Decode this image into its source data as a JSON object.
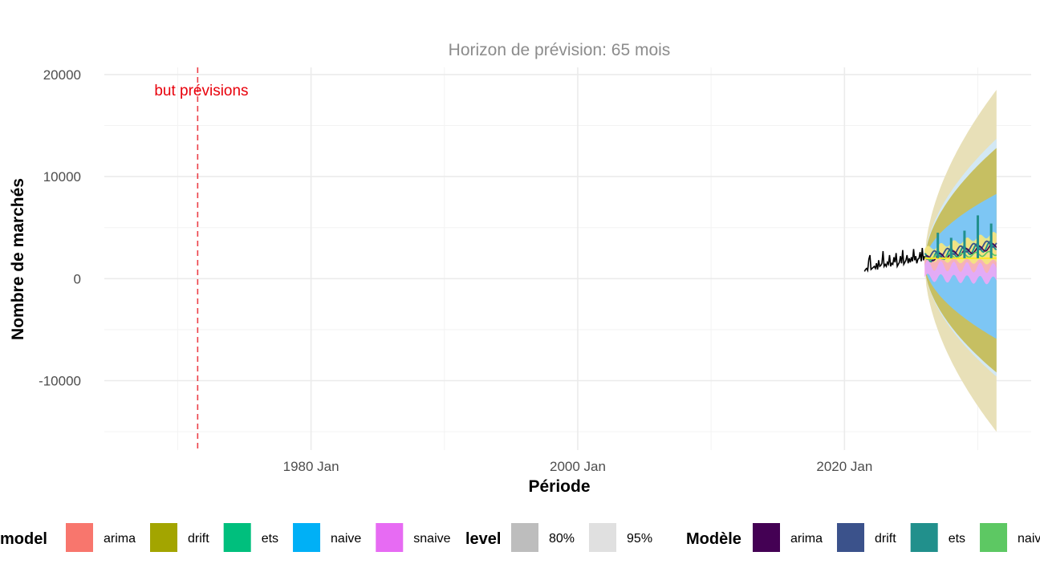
{
  "chart_data": {
    "type": "line",
    "title": "Horizon de prévision: 65 mois",
    "xlabel": "Période",
    "ylabel": "Nombre de marchés",
    "xlim": [
      1964.5,
      2034
    ],
    "ylim": [
      -16800,
      20700
    ],
    "x_ticks": [
      {
        "value": 1980,
        "label": "1980 Jan"
      },
      {
        "value": 2000,
        "label": "2000 Jan"
      },
      {
        "value": 2020,
        "label": "2020 Jan"
      }
    ],
    "y_ticks": [
      {
        "value": 20000,
        "label": "20000"
      },
      {
        "value": 10000,
        "label": "10000"
      },
      {
        "value": 0,
        "label": "0"
      },
      {
        "value": -10000,
        "label": "-10000"
      }
    ],
    "grid": true,
    "annotation": {
      "x": 1971.5,
      "text": "but prévisions",
      "color": "#e8000b"
    },
    "history": {
      "start": 2021.5,
      "end": 2026.0,
      "values": [
        700,
        900,
        1000,
        800,
        1900,
        2300,
        900,
        1000,
        1100,
        1200,
        1000,
        1500,
        900,
        1800,
        1200,
        1300,
        1500,
        2700,
        1200,
        1400,
        1200,
        1600,
        1400,
        2300,
        1200,
        1500,
        1400,
        2100,
        1600,
        2500,
        1200,
        1400,
        1600,
        2200,
        1500,
        2800,
        1400,
        1600,
        1800,
        2300,
        1500,
        2000,
        1600,
        2100,
        1700,
        2900,
        1800,
        2200,
        1500,
        1900,
        2000,
        2600,
        1700,
        3000,
        1800,
        2200
      ]
    },
    "forecast": {
      "start": 2026.0,
      "end": 2031.4,
      "intervals": [
        {
          "model": "drift",
          "level": "95%",
          "lo_end": -15000,
          "hi_end": 18500,
          "color": "#e8e0b8"
        },
        {
          "model": "naive",
          "level": "95%",
          "lo_end": -9600,
          "hi_end": 13700,
          "color": "#d3e8f4"
        },
        {
          "model": "drift",
          "level": "80%",
          "lo_end": -9200,
          "hi_end": 12800,
          "color": "#c6bf62"
        },
        {
          "model": "naive",
          "level": "80%",
          "lo_end": -5900,
          "hi_end": 8300,
          "color": "#7dc6f4"
        }
      ],
      "ets_points": [
        {
          "x": 2027.0,
          "y": 4500
        },
        {
          "x": 2028.0,
          "y": 4000
        },
        {
          "x": 2029.0,
          "y": 4700
        },
        {
          "x": 2030.0,
          "y": 6200
        },
        {
          "x": 2031.0,
          "y": 5400
        }
      ]
    },
    "legends": [
      {
        "title": "model",
        "entries": [
          {
            "label": "arima",
            "color": "#f8766d"
          },
          {
            "label": "drift",
            "color": "#a3a500"
          },
          {
            "label": "ets",
            "color": "#00bf7d"
          },
          {
            "label": "naive",
            "color": "#00b0f6"
          },
          {
            "label": "snaive",
            "color": "#e76bf3"
          }
        ]
      },
      {
        "title": "level",
        "entries": [
          {
            "label": "80%",
            "color": "#bdbdbd"
          },
          {
            "label": "95%",
            "color": "#e0e0e0"
          }
        ]
      },
      {
        "title": "Modèle",
        "entries": [
          {
            "label": "arima",
            "color": "#440154"
          },
          {
            "label": "drift",
            "color": "#3b528b"
          },
          {
            "label": "ets",
            "color": "#21908c"
          },
          {
            "label": "naive",
            "color": "#5dc863"
          }
        ]
      }
    ]
  }
}
